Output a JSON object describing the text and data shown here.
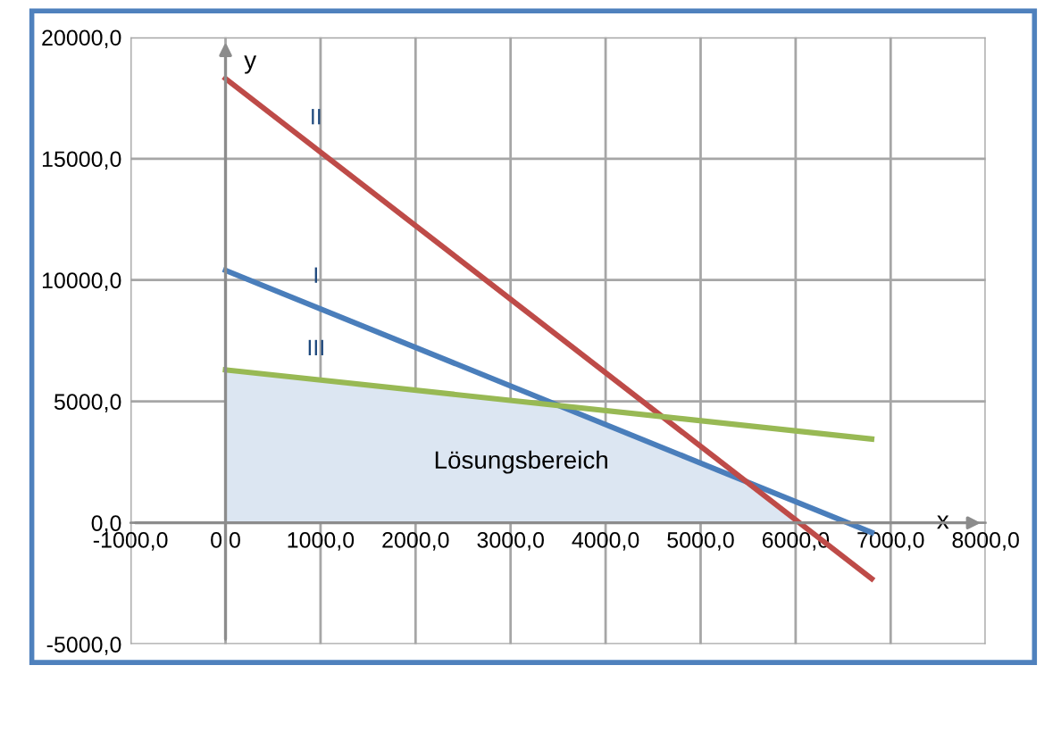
{
  "chart_data": {
    "type": "line",
    "xlabel": "x",
    "ylabel": "y",
    "series": [
      {
        "type": "area",
        "name": "Lösungsbereich",
        "color": "#dce6f2",
        "x": [
          0,
          3450,
          5400,
          6000
        ],
        "values": [
          6250,
          4880,
          1800,
          0
        ]
      },
      {
        "name": "I",
        "color": "#4a7ebb",
        "x": [
          0,
          6800
        ],
        "values": [
          10400,
          -400
        ]
      },
      {
        "name": "II",
        "color": "#be4b48",
        "x": [
          0,
          6800
        ],
        "values": [
          18300,
          -2300
        ]
      },
      {
        "name": "III",
        "color": "#98b954",
        "x": [
          0,
          6800
        ],
        "values": [
          6300,
          3450
        ]
      }
    ],
    "xlim": [
      -1000,
      8000
    ],
    "ylim": [
      -5000,
      20000
    ],
    "xticks": [
      {
        "value": -1000,
        "label": "-1000,0"
      },
      {
        "value": 0,
        "label": "0,0"
      },
      {
        "value": 1000,
        "label": "1000,0"
      },
      {
        "value": 2000,
        "label": "2000,0"
      },
      {
        "value": 3000,
        "label": "3000,0"
      },
      {
        "value": 4000,
        "label": "4000,0"
      },
      {
        "value": 5000,
        "label": "5000,0"
      },
      {
        "value": 6000,
        "label": "6000,0"
      },
      {
        "value": 7000,
        "label": "7000,0"
      },
      {
        "value": 8000,
        "label": "8000,0"
      }
    ],
    "yticks": [
      {
        "value": -5000,
        "label": "-5000,0"
      },
      {
        "value": 0,
        "label": "0,0"
      },
      {
        "value": 5000,
        "label": "5000,0"
      },
      {
        "value": 10000,
        "label": "10000,0"
      },
      {
        "value": 15000,
        "label": "15000,0"
      },
      {
        "value": 20000,
        "label": "20000,0"
      }
    ],
    "grid": true,
    "marker": "none",
    "line_style": "solid",
    "legend": false
  }
}
